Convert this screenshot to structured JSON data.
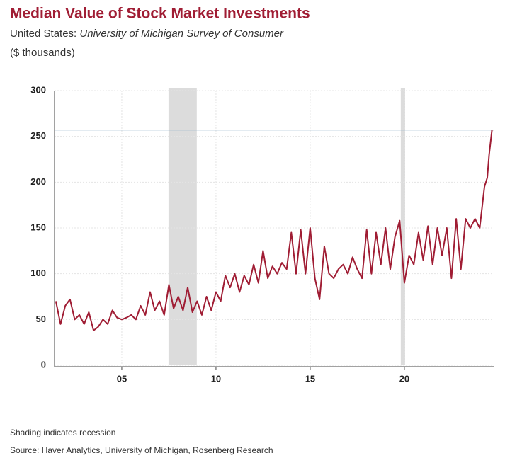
{
  "chart_data": {
    "type": "line",
    "title": "Median Value of Stock Market Investments",
    "subtitle_prefix": "United States:",
    "subtitle_source": "University of Michigan Survey of Consumer",
    "units": "($ thousands)",
    "note": "Shading indicates recession",
    "source": "Source: Haver Analytics, University of Michigan, Rosenberg Research",
    "color": "#a01d34",
    "reference_line": 257,
    "reference_color": "#8fb0c8",
    "recessions": [
      [
        2007.48,
        2008.98
      ],
      [
        2019.81,
        2020.04
      ]
    ],
    "grid": true,
    "xlim": [
      2001.43,
      2024.74
    ],
    "xticks": [
      {
        "value": 2005,
        "label": "05"
      },
      {
        "value": 2010,
        "label": "10"
      },
      {
        "value": 2015,
        "label": "15"
      },
      {
        "value": 2020,
        "label": "20"
      }
    ],
    "ylim": [
      0,
      300
    ],
    "yticks": [
      0,
      50,
      100,
      150,
      200,
      250,
      300
    ],
    "x": [
      2001.5,
      2001.75,
      2002,
      2002.25,
      2002.5,
      2002.75,
      2003,
      2003.25,
      2003.5,
      2003.75,
      2004,
      2004.25,
      2004.5,
      2004.75,
      2005,
      2005.25,
      2005.5,
      2005.75,
      2006,
      2006.25,
      2006.5,
      2006.75,
      2007,
      2007.25,
      2007.5,
      2007.75,
      2008,
      2008.25,
      2008.5,
      2008.75,
      2009,
      2009.25,
      2009.5,
      2009.75,
      2010,
      2010.25,
      2010.5,
      2010.75,
      2011,
      2011.25,
      2011.5,
      2011.75,
      2012,
      2012.25,
      2012.5,
      2012.75,
      2013,
      2013.25,
      2013.5,
      2013.75,
      2014,
      2014.25,
      2014.5,
      2014.75,
      2015,
      2015.25,
      2015.5,
      2015.75,
      2016,
      2016.25,
      2016.5,
      2016.75,
      2017,
      2017.25,
      2017.5,
      2017.75,
      2018,
      2018.25,
      2018.5,
      2018.75,
      2019,
      2019.25,
      2019.5,
      2019.75,
      2020,
      2020.25,
      2020.5,
      2020.75,
      2021,
      2021.25,
      2021.5,
      2021.75,
      2022,
      2022.25,
      2022.5,
      2022.75,
      2023,
      2023.25,
      2023.5,
      2023.75,
      2024,
      2024.25,
      2024.4,
      2024.5,
      2024.65
    ],
    "values": [
      70,
      45,
      65,
      72,
      50,
      55,
      45,
      58,
      38,
      42,
      50,
      45,
      60,
      52,
      50,
      52,
      55,
      50,
      65,
      55,
      80,
      60,
      70,
      55,
      88,
      62,
      75,
      60,
      85,
      58,
      70,
      55,
      75,
      60,
      80,
      70,
      98,
      85,
      100,
      80,
      98,
      88,
      110,
      90,
      125,
      95,
      108,
      100,
      112,
      105,
      145,
      100,
      148,
      100,
      150,
      95,
      72,
      130,
      100,
      95,
      105,
      110,
      100,
      118,
      105,
      95,
      148,
      100,
      145,
      110,
      150,
      105,
      140,
      158,
      90,
      120,
      110,
      145,
      115,
      152,
      110,
      150,
      120,
      150,
      95,
      160,
      105,
      160,
      150,
      160,
      150,
      195,
      205,
      230,
      257
    ]
  }
}
